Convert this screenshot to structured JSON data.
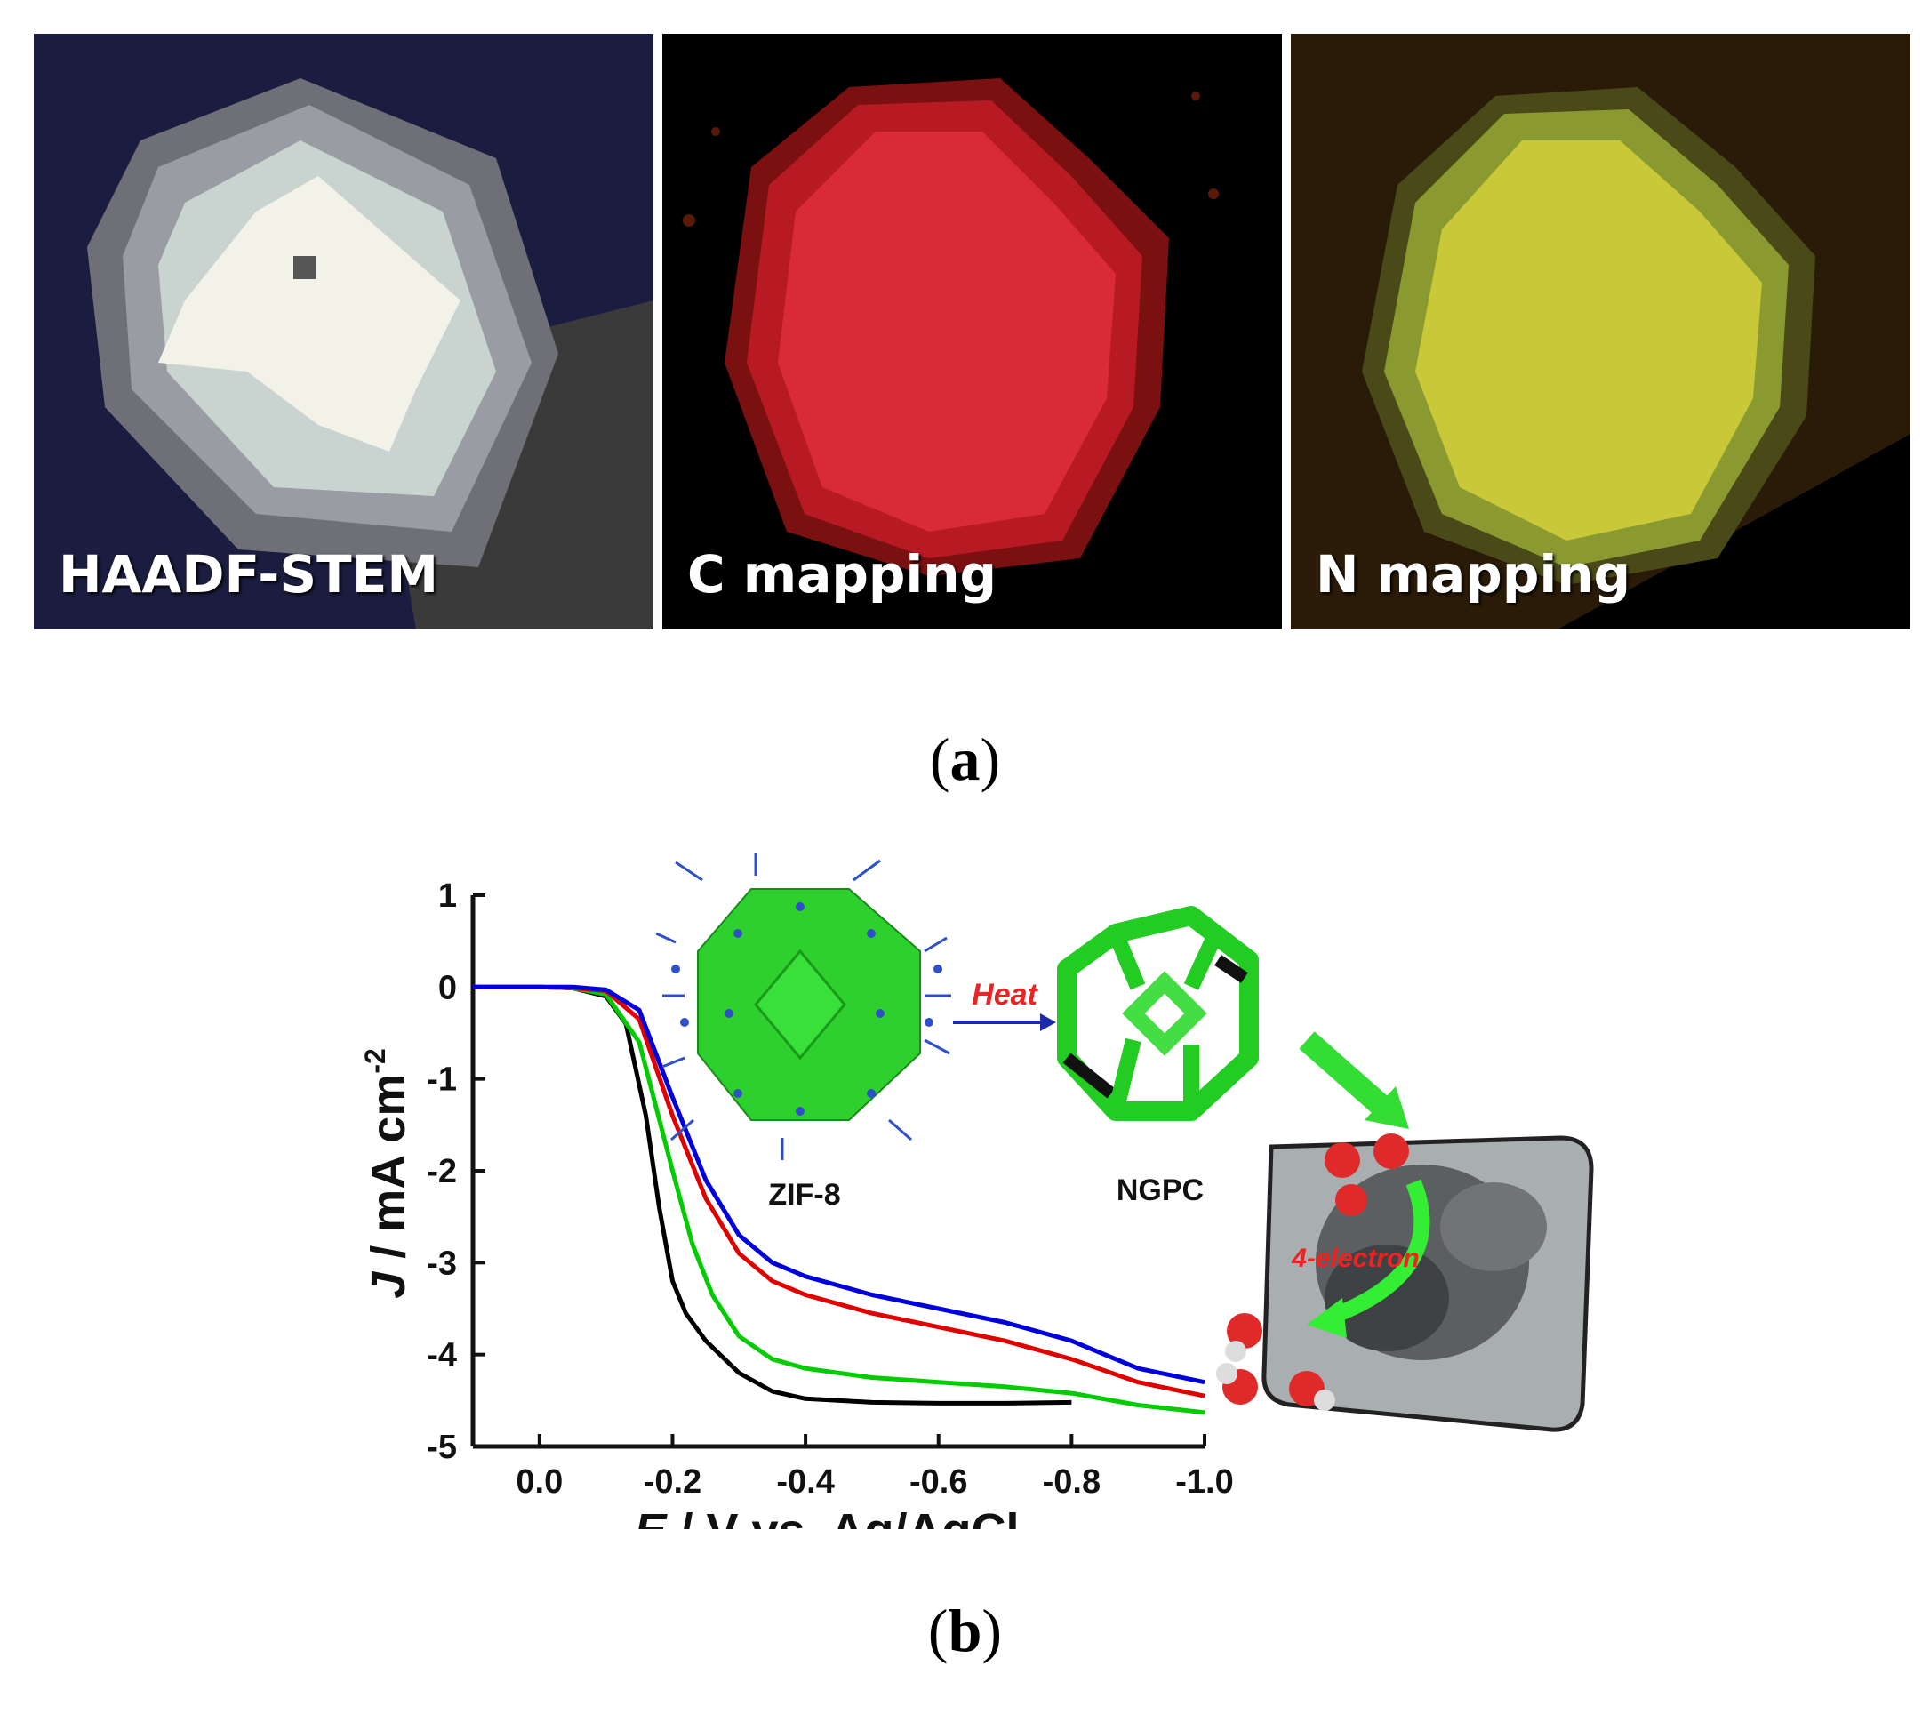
{
  "figure_a": {
    "panels": [
      {
        "id": "haadf",
        "label": "HAADF-STEM"
      },
      {
        "id": "c",
        "label": "C mapping"
      },
      {
        "id": "n",
        "label": "N mapping"
      }
    ],
    "caption_letter": "a"
  },
  "figure_b": {
    "caption_letter": "b",
    "schematic": {
      "zif_label": "ZIF-8",
      "ngpc_label": "NGPC",
      "heat_label": "Heat",
      "electron_label": "4-electron"
    }
  },
  "chart_data": {
    "type": "line",
    "xlabel_italic": "E",
    "xlabel_rest": " / V vs. Ag/AgCl",
    "ylabel_italic": "J",
    "ylabel_rest": " / mA cm",
    "ylabel_sup": "-2",
    "xlim": [
      0.1,
      -1.0
    ],
    "ylim": [
      -5,
      1
    ],
    "x_ticks": [
      0.0,
      -0.2,
      -0.4,
      -0.6,
      -0.8,
      -1.0
    ],
    "x_tick_labels": [
      "0.0",
      "-0.2",
      "-0.4",
      "-0.6",
      "-0.8",
      "-1.0"
    ],
    "y_ticks": [
      1,
      0,
      -1,
      -2,
      -3,
      -4,
      -5
    ],
    "y_tick_labels": [
      "1",
      "0",
      "-1",
      "-2",
      "-3",
      "-4",
      "-5"
    ],
    "grid": false,
    "series": [
      {
        "color": "#000000",
        "x": [
          0.1,
          0.0,
          -0.05,
          -0.1,
          -0.13,
          -0.16,
          -0.18,
          -0.2,
          -0.22,
          -0.25,
          -0.3,
          -0.35,
          -0.4,
          -0.5,
          -0.6,
          -0.7,
          -0.8
        ],
        "y": [
          0,
          0,
          -0.01,
          -0.1,
          -0.4,
          -1.4,
          -2.4,
          -3.2,
          -3.55,
          -3.85,
          -4.2,
          -4.4,
          -4.48,
          -4.52,
          -4.53,
          -4.53,
          -4.52
        ]
      },
      {
        "color": "#00cc00",
        "x": [
          0.1,
          0.0,
          -0.05,
          -0.1,
          -0.15,
          -0.2,
          -0.23,
          -0.26,
          -0.3,
          -0.35,
          -0.4,
          -0.5,
          -0.6,
          -0.7,
          -0.8,
          -0.9,
          -1.0
        ],
        "y": [
          0,
          0,
          -0.01,
          -0.08,
          -0.6,
          -2.0,
          -2.8,
          -3.35,
          -3.8,
          -4.05,
          -4.15,
          -4.25,
          -4.3,
          -4.35,
          -4.42,
          -4.55,
          -4.63
        ]
      },
      {
        "color": "#e00000",
        "x": [
          0.1,
          0.0,
          -0.05,
          -0.1,
          -0.15,
          -0.2,
          -0.25,
          -0.3,
          -0.35,
          -0.4,
          -0.5,
          -0.6,
          -0.7,
          -0.8,
          -0.9,
          -1.0
        ],
        "y": [
          0,
          0,
          -0.01,
          -0.04,
          -0.35,
          -1.4,
          -2.3,
          -2.9,
          -3.2,
          -3.35,
          -3.55,
          -3.7,
          -3.85,
          -4.05,
          -4.3,
          -4.45
        ]
      },
      {
        "color": "#0000dd",
        "x": [
          0.1,
          0.0,
          -0.05,
          -0.1,
          -0.15,
          -0.2,
          -0.25,
          -0.3,
          -0.35,
          -0.4,
          -0.5,
          -0.6,
          -0.7,
          -0.8,
          -0.9,
          -1.0
        ],
        "y": [
          0,
          0,
          0,
          -0.03,
          -0.25,
          -1.2,
          -2.1,
          -2.7,
          -3.0,
          -3.15,
          -3.35,
          -3.5,
          -3.65,
          -3.85,
          -4.15,
          -4.3
        ]
      }
    ]
  }
}
